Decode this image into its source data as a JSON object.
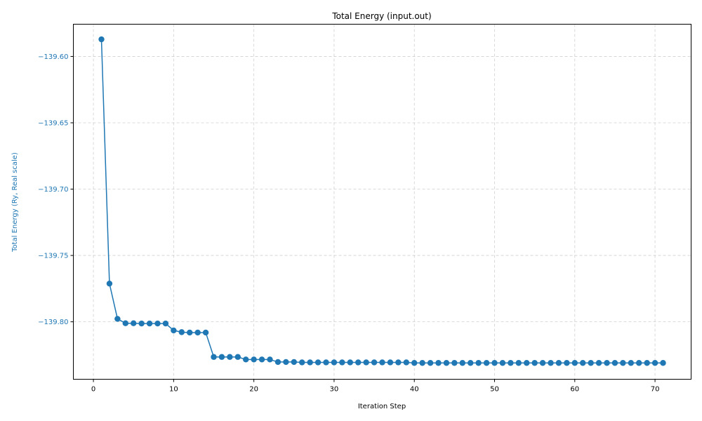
{
  "chart_data": {
    "type": "line",
    "title": "Total Energy (input.out)",
    "xlabel": "Iteration Step",
    "ylabel": "Total Energy (Ry, Real scale)",
    "xlim": [
      -2.5,
      74.5
    ],
    "ylim": [
      -139.8433,
      -139.5757
    ],
    "x_ticks": [
      0,
      10,
      20,
      30,
      40,
      50,
      60,
      70
    ],
    "x_tick_labels": [
      "0",
      "10",
      "20",
      "30",
      "40",
      "50",
      "60",
      "70"
    ],
    "y_ticks": [
      -139.6,
      -139.65,
      -139.7,
      -139.75,
      -139.8
    ],
    "y_tick_labels": [
      "−139.60",
      "−139.65",
      "−139.70",
      "−139.75",
      "−139.80"
    ],
    "grid": true,
    "marker": "circle",
    "series": [
      {
        "color": "#1f77b4",
        "x": [
          1,
          2,
          3,
          4,
          5,
          6,
          7,
          8,
          9,
          10,
          11,
          12,
          13,
          14,
          15,
          16,
          17,
          18,
          19,
          20,
          21,
          22,
          23,
          24,
          25,
          26,
          27,
          28,
          29,
          30,
          31,
          32,
          33,
          34,
          35,
          36,
          37,
          38,
          39,
          40,
          41,
          42,
          43,
          44,
          45,
          46,
          47,
          48,
          49,
          50,
          51,
          52,
          53,
          54,
          55,
          56,
          57,
          58,
          59,
          60,
          61,
          62,
          63,
          64,
          65,
          66,
          67,
          68,
          69,
          70,
          71
        ],
        "values": [
          -139.5871,
          -139.7712,
          -139.7978,
          -139.8011,
          -139.8011,
          -139.8013,
          -139.8013,
          -139.8013,
          -139.8013,
          -139.8065,
          -139.8078,
          -139.8081,
          -139.8081,
          -139.8081,
          -139.8265,
          -139.8265,
          -139.8265,
          -139.8265,
          -139.8284,
          -139.8284,
          -139.8284,
          -139.8284,
          -139.8303,
          -139.8303,
          -139.8303,
          -139.8306,
          -139.8306,
          -139.8306,
          -139.8306,
          -139.8306,
          -139.8306,
          -139.8306,
          -139.8306,
          -139.8306,
          -139.8306,
          -139.8306,
          -139.8306,
          -139.8306,
          -139.8306,
          -139.831,
          -139.831,
          -139.831,
          -139.831,
          -139.831,
          -139.831,
          -139.831,
          -139.831,
          -139.831,
          -139.831,
          -139.831,
          -139.831,
          -139.831,
          -139.831,
          -139.831,
          -139.831,
          -139.831,
          -139.831,
          -139.831,
          -139.831,
          -139.831,
          -139.831,
          -139.831,
          -139.831,
          -139.831,
          -139.831,
          -139.831,
          -139.831,
          -139.831,
          -139.831,
          -139.831,
          -139.831
        ]
      }
    ]
  }
}
